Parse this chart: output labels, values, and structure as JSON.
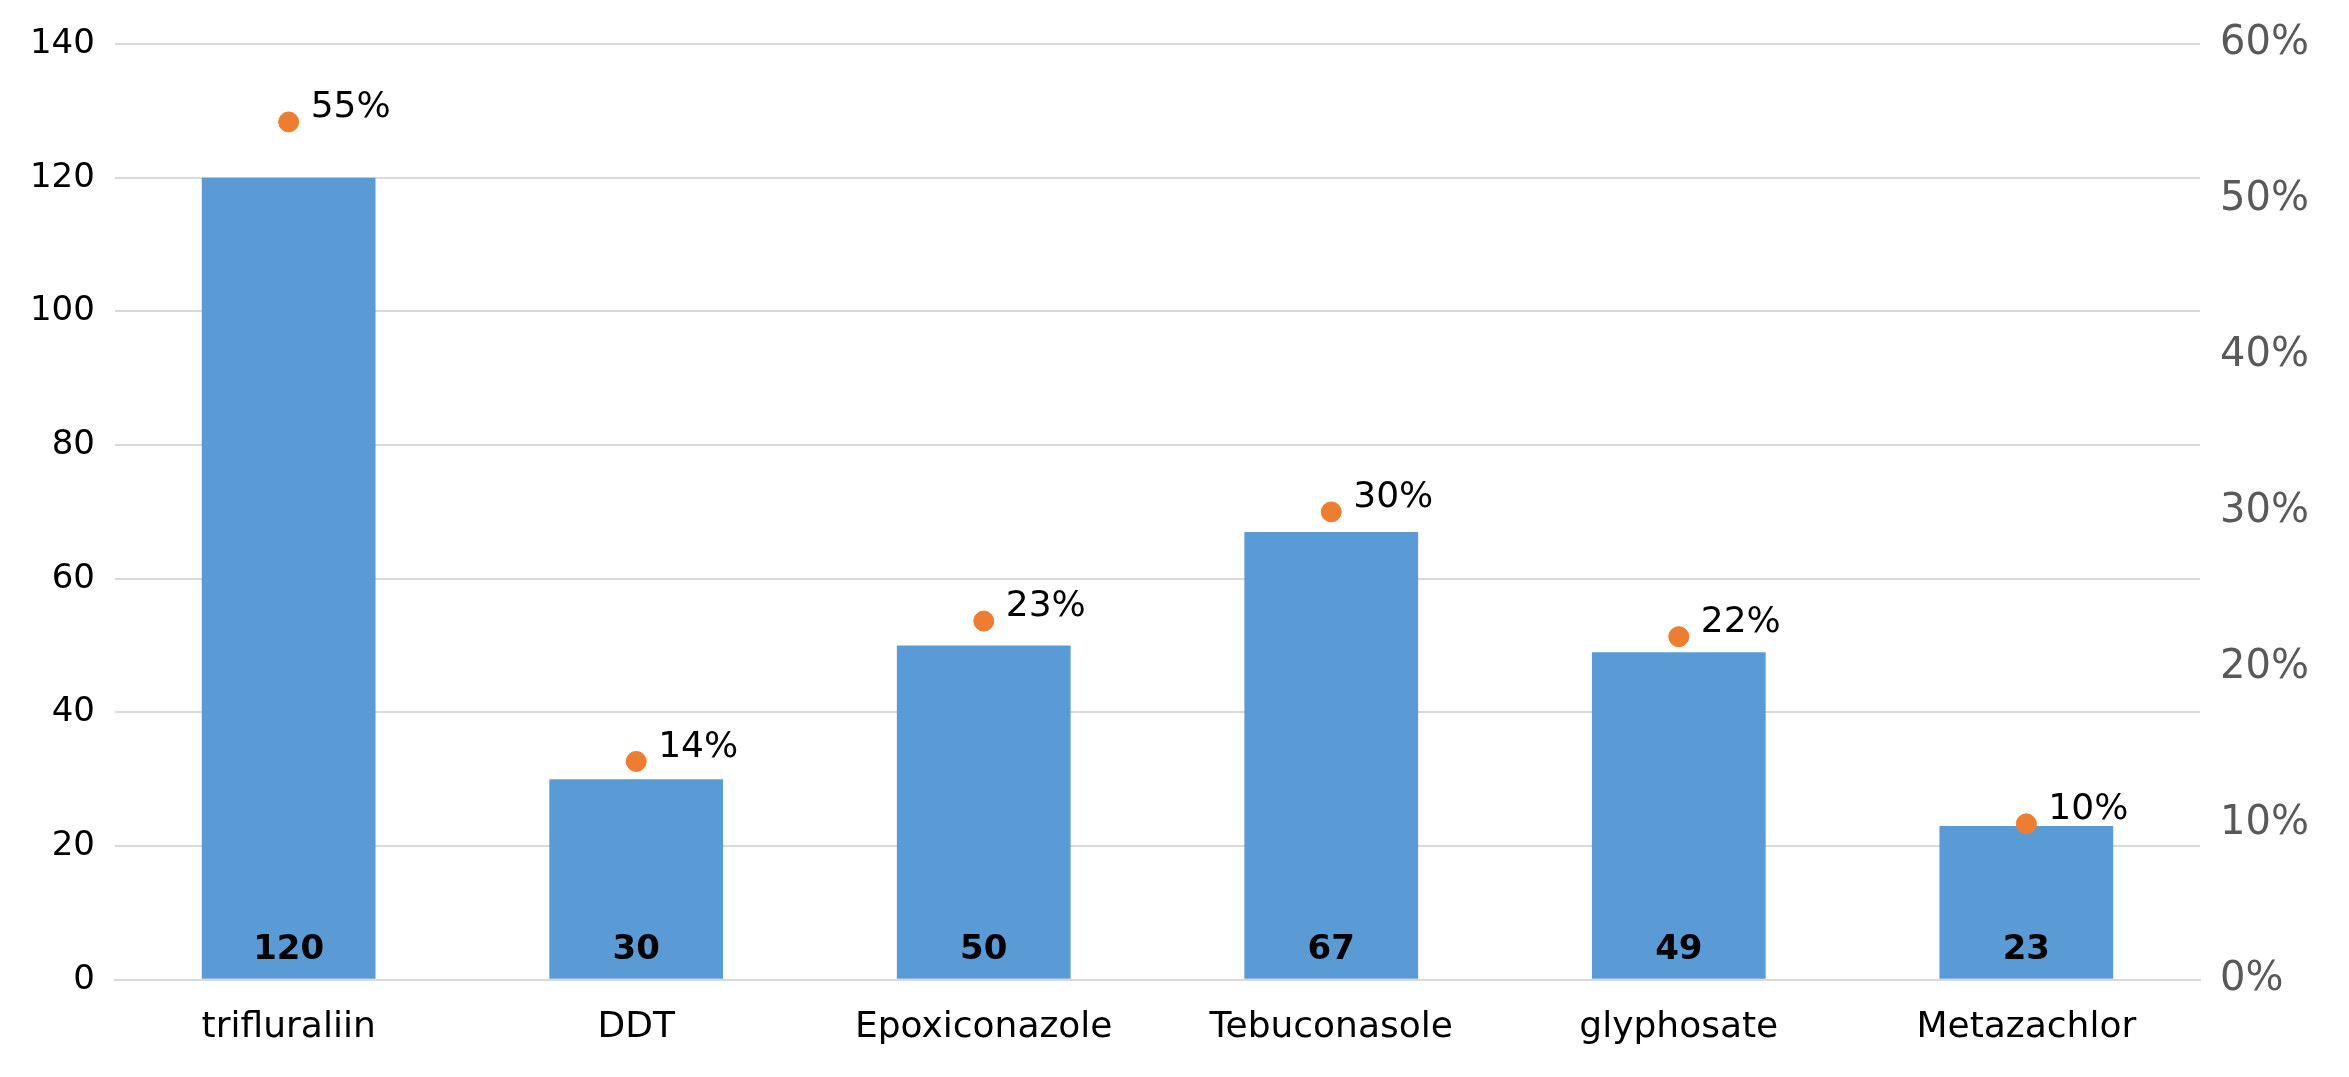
{
  "chart_data": {
    "type": "bar",
    "categories": [
      "trifluraliin",
      "DDT",
      "Epoxiconazole",
      "Tebuconasole",
      "glyphosate",
      "Metazachlor"
    ],
    "series": [
      {
        "color": "#5b9bd5",
        "values": [
          120,
          30,
          50,
          67,
          49,
          23
        ],
        "value_labels": [
          "120",
          "30",
          "50",
          "67",
          "49",
          "23"
        ]
      },
      {
        "type": "scatter",
        "axis": "y2",
        "color": "#ed7d31",
        "marker": "circle",
        "values": [
          55,
          14,
          23,
          30,
          22,
          10
        ],
        "value_labels": [
          "55%",
          "14%",
          "23%",
          "30%",
          "22%",
          "10%"
        ]
      }
    ],
    "ylim": [
      0,
      140
    ],
    "yticks": [
      0,
      20,
      40,
      60,
      80,
      100,
      120,
      140
    ],
    "y2lim": [
      0,
      60
    ],
    "y2ticks": [
      {
        "value": 0,
        "label": "0%"
      },
      {
        "value": 10,
        "label": "10%"
      },
      {
        "value": 20,
        "label": "20%"
      },
      {
        "value": 30,
        "label": "30%"
      },
      {
        "value": 40,
        "label": "40%"
      },
      {
        "value": 50,
        "label": "50%"
      },
      {
        "value": 60,
        "label": "60%"
      }
    ],
    "grid": "y",
    "legend": false
  }
}
